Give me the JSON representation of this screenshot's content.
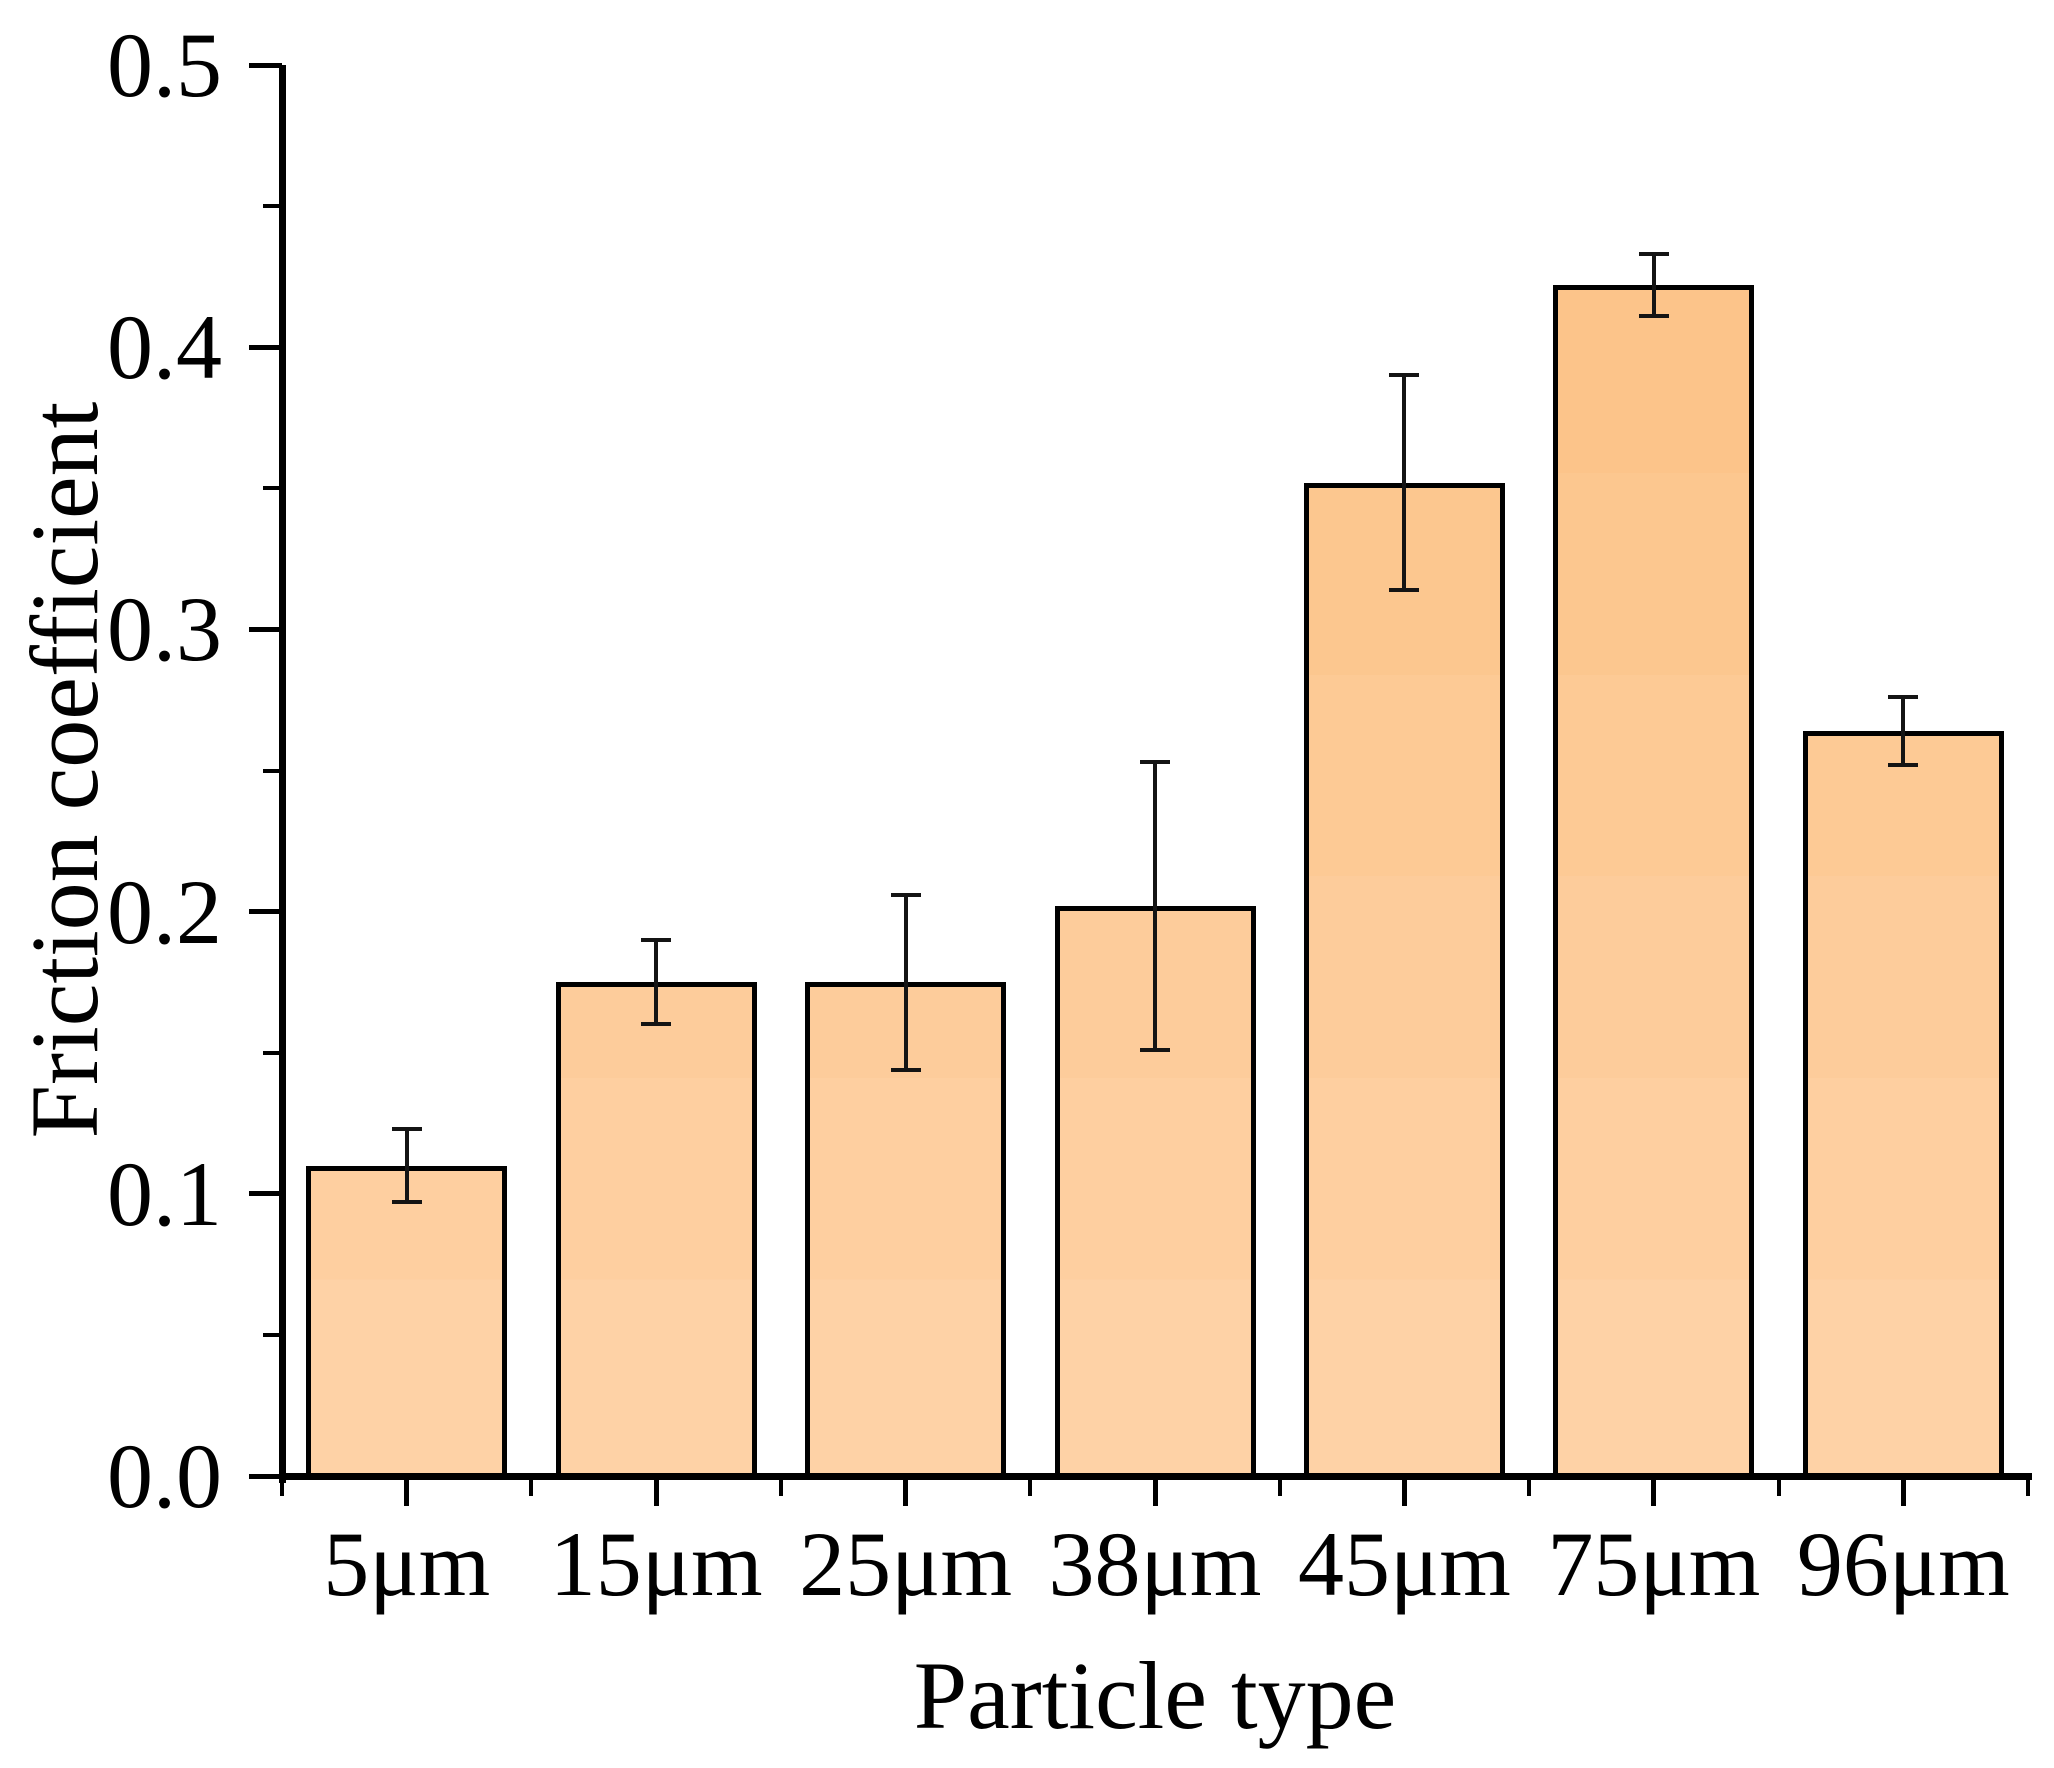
{
  "figure": {
    "background": "#ffffff"
  },
  "chart_data": {
    "type": "bar",
    "title": "",
    "categories": [
      "5μm",
      "15μm",
      "25μm",
      "38μm",
      "45μm",
      "75μm",
      "96μm"
    ],
    "values": [
      0.11,
      0.175,
      0.175,
      0.202,
      0.352,
      0.422,
      0.264
    ],
    "errors": [
      0.013,
      0.015,
      0.031,
      0.051,
      0.038,
      0.011,
      0.012
    ],
    "xlabel": "Particle type",
    "ylabel": "Friction coefficient",
    "ylim": [
      0.0,
      0.5
    ],
    "y_major_ticks": [
      0.0,
      0.1,
      0.2,
      0.3,
      0.4,
      0.5
    ],
    "y_tick_labels": [
      "0.0",
      "0.1",
      "0.2",
      "0.3",
      "0.4",
      "0.5"
    ],
    "y_minor_step": 0.05,
    "grid": false,
    "legend_position": "none",
    "bar_band_colors": [
      "#fbc184",
      "#fcc48a",
      "#fcc78f",
      "#fdca95",
      "#fdcc9b",
      "#fecfa0",
      "#fed2a6"
    ],
    "bar_border_color": "#000000",
    "error_bar_color": "#141414",
    "axis_color": "#000000"
  }
}
